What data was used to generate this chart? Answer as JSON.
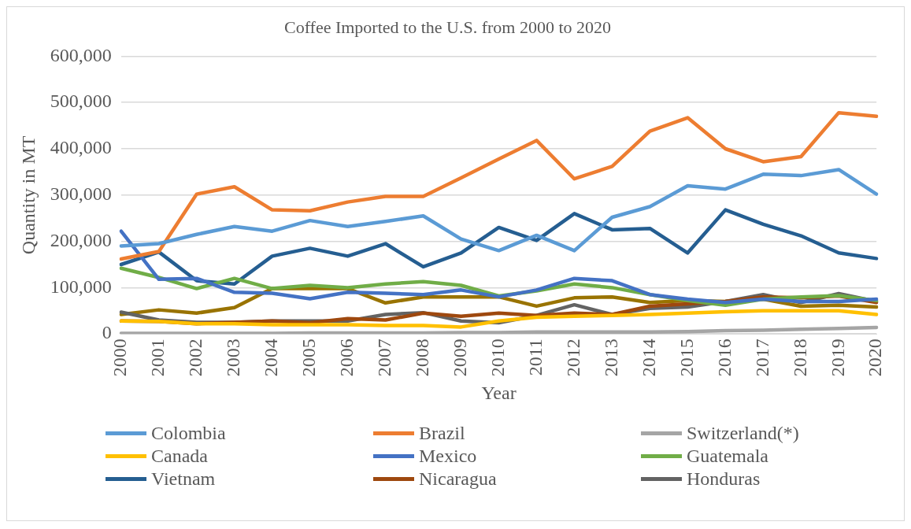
{
  "chart_data": {
    "type": "line",
    "title": "Coffee Imported to the U.S. from 2000 to 2020",
    "xlabel": "Year",
    "ylabel": "Quantity in MT",
    "categories": [
      "2000",
      "2001",
      "2002",
      "2003",
      "2004",
      "2005",
      "2006",
      "2007",
      "2008",
      "2009",
      "2010",
      "2011",
      "2012",
      "2013",
      "2014",
      "2015",
      "2016",
      "2017",
      "2018",
      "2019",
      "2020"
    ],
    "ylim": [
      0,
      600000
    ],
    "yticks": [
      {
        "value": 0,
        "label": "0"
      },
      {
        "value": 100000,
        "label": "100,000"
      },
      {
        "value": 200000,
        "label": "200,000"
      },
      {
        "value": 300000,
        "label": "300,000"
      },
      {
        "value": 400000,
        "label": "400,000"
      },
      {
        "value": 500000,
        "label": "500,000"
      },
      {
        "value": 600000,
        "label": "600,000"
      }
    ],
    "grid": "y",
    "legend": "bottom",
    "marker": "none",
    "line_style": "solid",
    "series": [
      {
        "name": "Colombia",
        "color": "#5b9bd5",
        "values": [
          190000,
          195000,
          215000,
          232000,
          222000,
          245000,
          232000,
          243000,
          255000,
          205000,
          180000,
          213000,
          180000,
          252000,
          275000,
          320000,
          313000,
          345000,
          342000,
          355000,
          302000
        ]
      },
      {
        "name": "Brazil",
        "color": "#ed7d31",
        "values": [
          162000,
          178000,
          302000,
          318000,
          268000,
          266000,
          285000,
          297000,
          297000,
          337000,
          378000,
          418000,
          335000,
          362000,
          438000,
          467000,
          400000,
          372000,
          383000,
          478000,
          470000
        ]
      },
      {
        "name": "Switzerland(*)",
        "color": "#a5a5a5",
        "values": [
          1000,
          1000,
          1000,
          1000,
          1000,
          2000,
          2000,
          2000,
          2000,
          3000,
          3000,
          4000,
          4000,
          4000,
          4000,
          5000,
          7000,
          8000,
          10000,
          12000,
          14000
        ]
      },
      {
        "name": "Canada",
        "color": "#ffc000",
        "values": [
          28000,
          27000,
          22000,
          22000,
          20000,
          20000,
          20000,
          18000,
          18000,
          15000,
          28000,
          36000,
          38000,
          40000,
          42000,
          45000,
          48000,
          50000,
          50000,
          50000,
          42000
        ]
      },
      {
        "name": "Mexico",
        "color": "#4472c4",
        "values": [
          222000,
          118000,
          120000,
          90000,
          88000,
          76000,
          90000,
          88000,
          85000,
          95000,
          80000,
          95000,
          120000,
          115000,
          85000,
          75000,
          68000,
          75000,
          70000,
          70000,
          75000
        ]
      },
      {
        "name": "Guatemala",
        "color": "#70ad47",
        "values": [
          142000,
          122000,
          98000,
          120000,
          98000,
          105000,
          100000,
          108000,
          113000,
          105000,
          82000,
          93000,
          108000,
          100000,
          85000,
          72000,
          62000,
          75000,
          80000,
          83000,
          72000
        ]
      },
      {
        "name": "Vietnam",
        "color": "#255e91",
        "values": [
          150000,
          177000,
          115000,
          108000,
          168000,
          185000,
          168000,
          195000,
          145000,
          175000,
          230000,
          202000,
          260000,
          225000,
          228000,
          175000,
          268000,
          237000,
          212000,
          175000,
          163000
        ]
      },
      {
        "name": "Nicaragua",
        "color": "#9e480e",
        "values": [
          28000,
          27000,
          22000,
          25000,
          28000,
          24000,
          33000,
          30000,
          45000,
          38000,
          45000,
          40000,
          45000,
          42000,
          60000,
          65000,
          70000,
          80000,
          78000,
          82000,
          68000
        ]
      },
      {
        "name": "Honduras",
        "color": "#636363",
        "values": [
          47000,
          30000,
          25000,
          25000,
          28000,
          28000,
          28000,
          42000,
          46000,
          28000,
          24000,
          40000,
          63000,
          42000,
          55000,
          58000,
          70000,
          85000,
          68000,
          87000,
          70000
        ]
      },
      {
        "color": "#997300",
        "values": [
          42000,
          52000,
          45000,
          57000,
          98000,
          98000,
          98000,
          67000,
          80000,
          80000,
          80000,
          60000,
          78000,
          80000,
          68000,
          72000,
          70000,
          75000,
          60000,
          62000,
          58000
        ]
      }
    ]
  }
}
